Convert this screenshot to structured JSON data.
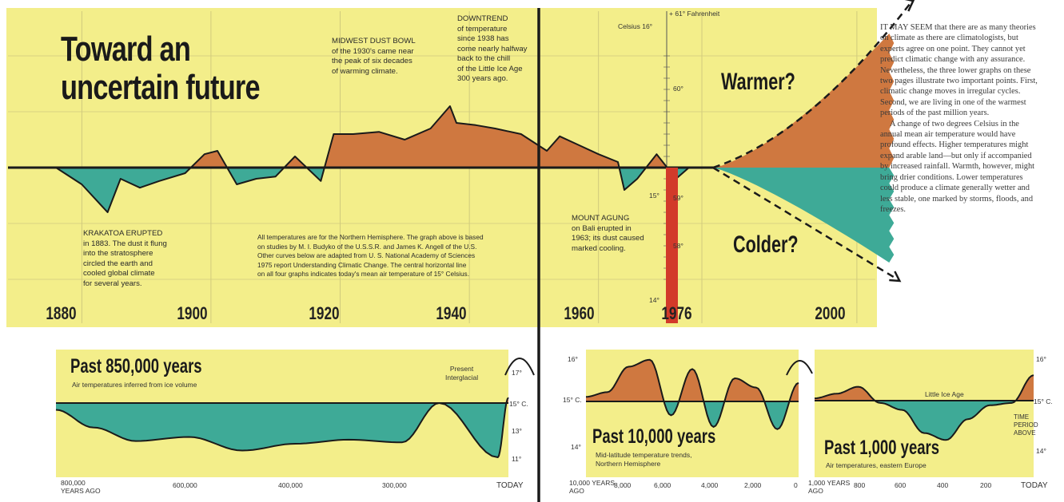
{
  "title": [
    "Toward an",
    "uncertain future"
  ],
  "colors": {
    "panel_bg": "#f3ee8a",
    "warm": "#cf7840",
    "cool": "#3eaa97",
    "red_bar": "#d23a2a",
    "line": "#1a1a1a"
  },
  "main_chart": {
    "type": "area",
    "x_tick_labels": [
      "1880",
      "1900",
      "1920",
      "1940",
      "1960",
      "1976",
      "2000"
    ],
    "scale_celsius": [
      "Celsius 16°",
      "15°",
      "14°"
    ],
    "scale_fahrenheit": [
      "+ 61° Fahrenheit",
      "60°",
      "59°",
      "58°"
    ],
    "projection_labels": {
      "warmer": "Warmer?",
      "colder": "Colder?"
    },
    "annotations": {
      "krakatoa": {
        "head": "KRAKATOA ERUPTED",
        "lines": [
          "in 1883. The dust it flung",
          "into the stratosphere",
          "circled the earth and",
          "cooled global climate",
          "for several years."
        ]
      },
      "dustbowl": {
        "lines": [
          "MIDWEST DUST BOWL",
          "of the 1930's came near",
          "the peak of six decades",
          "of warming climate."
        ]
      },
      "downtrend": {
        "lines": [
          "DOWNTREND",
          "of temperature",
          "since 1938 has",
          "come nearly halfway",
          "back to the chill",
          "of the Little Ice Age",
          "300 years ago."
        ]
      },
      "agung": {
        "head": "MOUNT AGUNG",
        "lines": [
          "on Bali erupted in",
          "1963; its dust caused",
          "marked cooling."
        ]
      },
      "note": {
        "lines": [
          "All temperatures are for the Northern Hemisphere. The graph above is based",
          "on studies by M. I. Budyko of the U.S.S.R. and James K. Angell of the U.S.",
          "Other curves below are adapted from U. S. National Academy of Sciences",
          "1975 report Understanding Climatic Change. The central horizontal line",
          "on all four graphs indicates today's mean air temperature of 15° Celsius."
        ]
      }
    },
    "chart_data": {
      "type": "area",
      "x_label": "",
      "y_label": "",
      "baseline_c": 15,
      "x": [
        1876,
        1880,
        1884,
        1886,
        1889,
        1892,
        1896,
        1899,
        1901,
        1904,
        1907,
        1910,
        1913,
        1917,
        1919,
        1922,
        1926,
        1930,
        1934,
        1937,
        1938,
        1941,
        1944,
        1948,
        1952,
        1954,
        1957,
        1960,
        1963,
        1964,
        1966,
        1969,
        1972,
        1974
      ],
      "y_c": [
        15.0,
        14.85,
        14.6,
        14.9,
        14.82,
        14.88,
        14.95,
        15.12,
        15.15,
        14.85,
        14.9,
        14.92,
        15.1,
        14.88,
        15.3,
        15.3,
        15.32,
        15.25,
        15.35,
        15.55,
        15.4,
        15.38,
        15.35,
        15.3,
        15.15,
        15.28,
        15.2,
        15.12,
        15.05,
        14.8,
        14.9,
        15.12,
        14.9,
        15.0
      ],
      "projection": {
        "start": 1976,
        "end": 2005,
        "warmer_c": 16.2,
        "colder_c": 14.15
      }
    }
  },
  "insets": [
    {
      "id": "850k",
      "title": "Past 850,000 years",
      "subtitle": "Air temperatures inferred from ice volume",
      "annotation": [
        "Present",
        "Interglacial"
      ],
      "y_labels": [
        "17°",
        "15° C.",
        "13°",
        "11°"
      ],
      "x_labels": [
        "800,000 YEARS AGO",
        "600,000",
        "400,000",
        "300,000",
        "TODAY"
      ],
      "chart_data": {
        "type": "area",
        "baseline_c": 15,
        "x": [
          850000,
          780000,
          700000,
          600000,
          500000,
          400000,
          300000,
          200000,
          130000,
          20000,
          0
        ],
        "y_c": [
          14.5,
          13.2,
          12.2,
          12.5,
          11.5,
          12.0,
          12.3,
          12.1,
          15.0,
          11.0,
          15.4
        ]
      }
    },
    {
      "id": "10k",
      "title": "Past 10,000 years",
      "subtitle": "Mid-latitude temperature trends, Northern Hemisphere",
      "y_labels": [
        "16°",
        "15° C.",
        "14°"
      ],
      "x_labels": [
        "10,000 YEARS AGO",
        "8,000",
        "6,000",
        "4,000",
        "2,000",
        "0"
      ],
      "chart_data": {
        "type": "area",
        "baseline_c": 15,
        "x": [
          10000,
          9000,
          8000,
          7000,
          6000,
          5000,
          4000,
          3000,
          2000,
          1000,
          0
        ],
        "y_c": [
          15.1,
          15.2,
          15.75,
          15.9,
          14.7,
          15.7,
          14.45,
          15.5,
          15.3,
          14.4,
          15.4
        ]
      }
    },
    {
      "id": "1k",
      "title": "Past 1,000 years",
      "subtitle": "Air temperatures, eastern Europe",
      "annotation": [
        "Little Ice Age"
      ],
      "y_labels": [
        "16°",
        "15° C.",
        "14°"
      ],
      "right_note": [
        "TIME",
        "PERIOD",
        "ABOVE"
      ],
      "x_labels": [
        "1,000 YEARS AGO",
        "800",
        "600",
        "400",
        "200",
        "TODAY"
      ],
      "chart_data": {
        "type": "area",
        "baseline_c": 15,
        "x": [
          1000,
          900,
          800,
          700,
          600,
          500,
          400,
          300,
          200,
          100,
          0
        ],
        "y_c": [
          15.05,
          15.15,
          15.3,
          14.95,
          14.8,
          14.3,
          14.15,
          14.6,
          14.9,
          14.95,
          15.55
        ]
      }
    }
  ],
  "essay": [
    "IT MAY SEEM that there are as many theories on climate as there are climatologists, but experts agree on one point. They cannot yet predict climatic change with any assurance. Nevertheless, the three lower graphs on these two pages illustrate two important points. First, climatic change moves in irregular cycles. Second, we are living in one of the warmest periods of the past million years.",
    "A change of two degrees Celsius in the annual mean air temperature would have profound effects. Higher temperatures might expand arable land—but only if accompanied by increased rainfall. Warmth, however, might bring drier conditions. Lower temperatures could produce a climate generally wetter and less stable, one marked by storms, floods, and freezes."
  ]
}
